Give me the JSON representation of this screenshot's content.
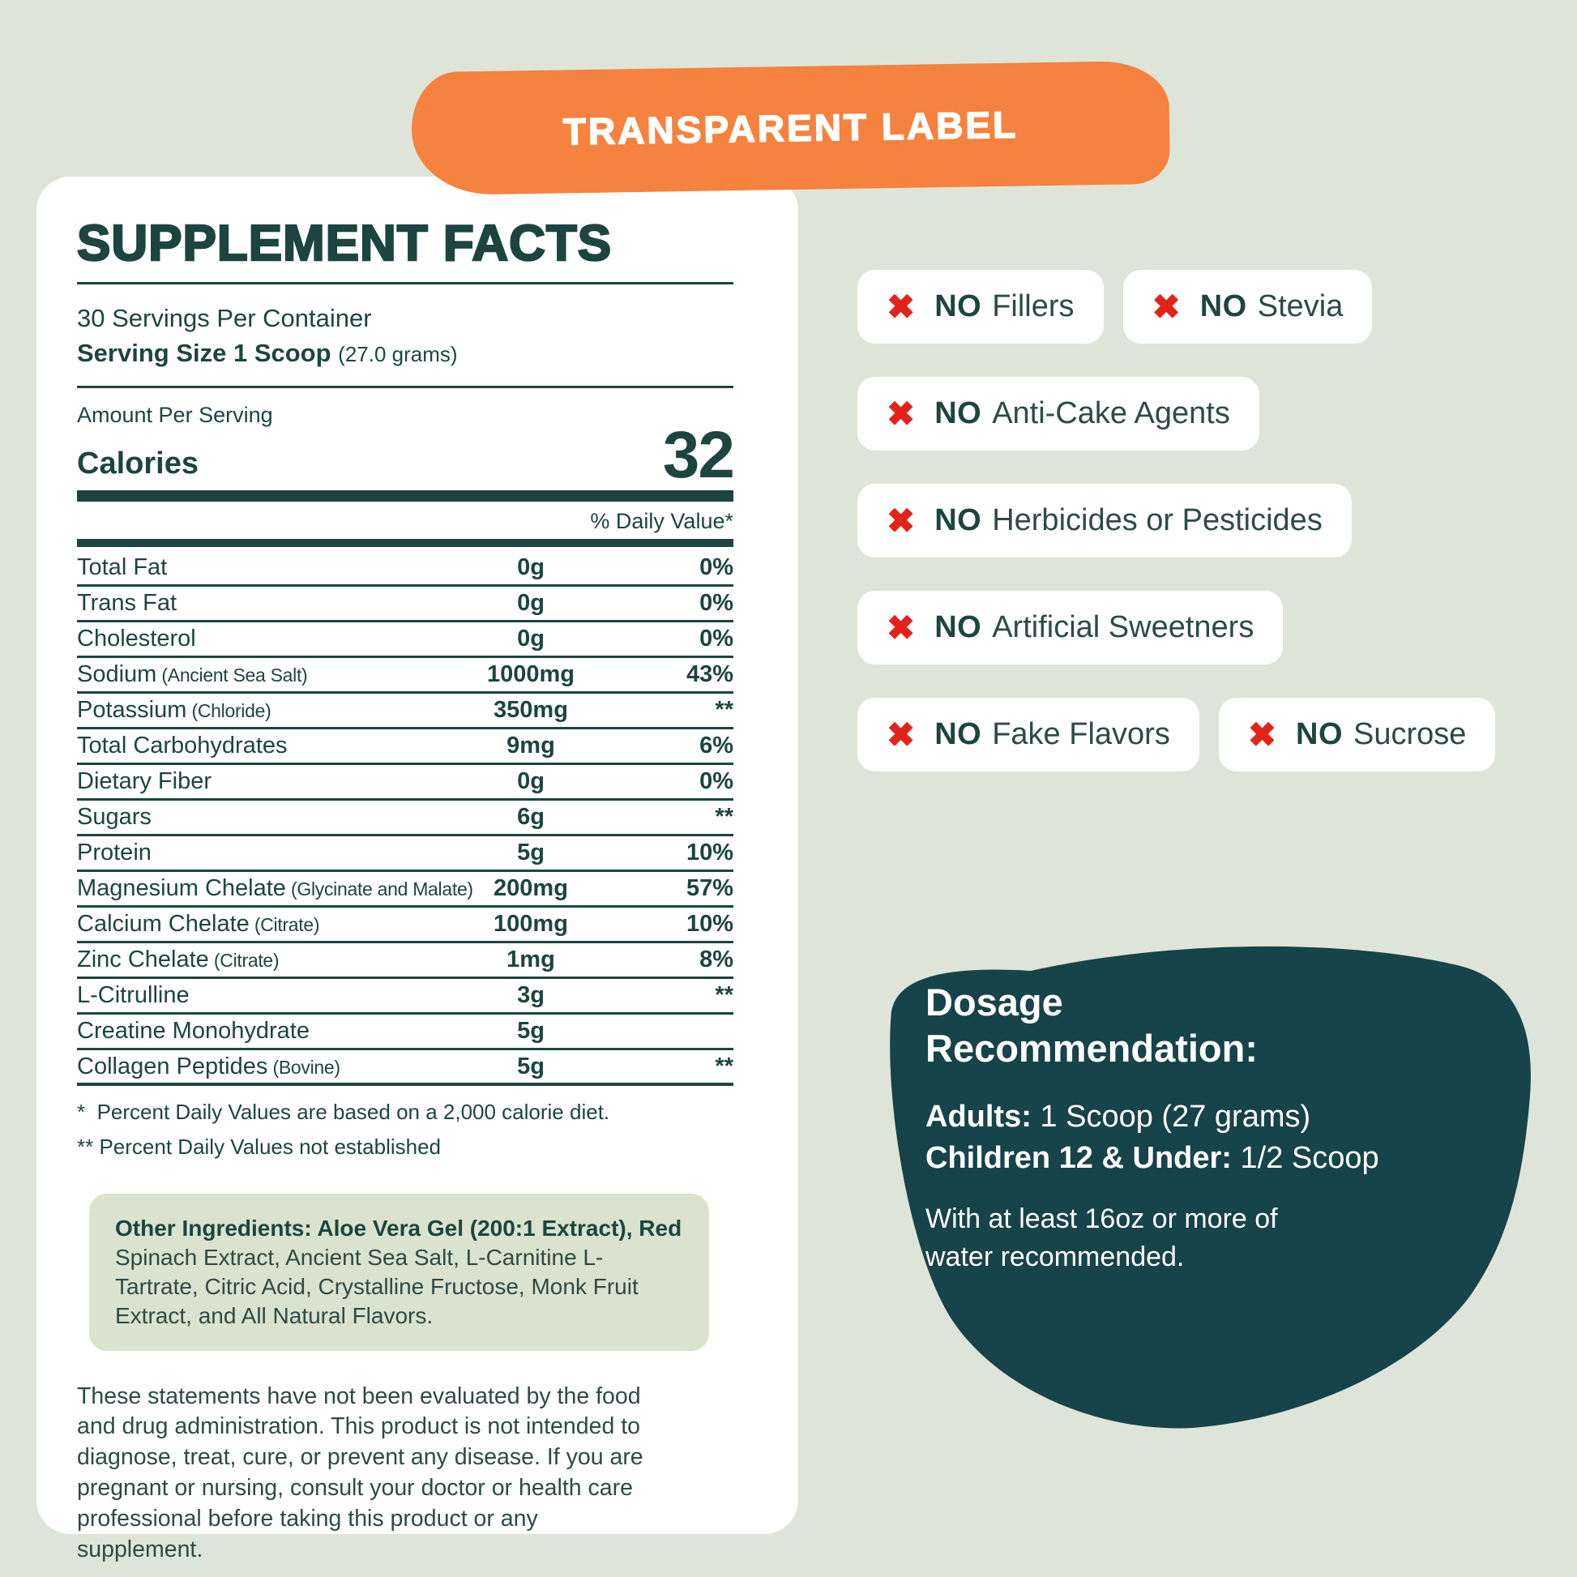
{
  "colors": {
    "bg": "#dee5d8",
    "orange": "#f5823e",
    "teal": "#1d4540",
    "blob": "#17434a",
    "red": "#e2231a",
    "box_bg": "#d9e3ce",
    "card": "#ffffff"
  },
  "icons": {
    "x": "✖"
  },
  "banner": {
    "label": "TRANSPARENT LABEL"
  },
  "supplement_facts": {
    "title": "SUPPLEMENT FACTS",
    "servings_per_container": "30 Servings Per Container",
    "serving_size_label": "Serving Size 1 Scoop ",
    "serving_size_detail": "(27.0 grams)",
    "amount_per_serving_label": "Amount Per Serving",
    "calories_label": "Calories",
    "calories_value": "32",
    "daily_value_header": "% Daily Value*",
    "rows": [
      {
        "name": "Total Fat",
        "sub": "",
        "amount": "0g",
        "dv": "0%"
      },
      {
        "name": "Trans Fat",
        "sub": "",
        "amount": "0g",
        "dv": "0%"
      },
      {
        "name": "Cholesterol",
        "sub": "",
        "amount": "0g",
        "dv": "0%"
      },
      {
        "name": "Sodium",
        "sub": "(Ancient Sea Salt)",
        "amount": "1000mg",
        "dv": "43%"
      },
      {
        "name": "Potassium",
        "sub": "(Chloride)",
        "amount": "350mg",
        "dv": "**"
      },
      {
        "name": "Total Carbohydrates",
        "sub": "",
        "amount": "9mg",
        "dv": "6%"
      },
      {
        "name": "Dietary Fiber",
        "sub": "",
        "amount": "0g",
        "dv": "0%"
      },
      {
        "name": "Sugars",
        "sub": "",
        "amount": "6g",
        "dv": "**"
      },
      {
        "name": "Protein",
        "sub": "",
        "amount": "5g",
        "dv": "10%"
      },
      {
        "name": "Magnesium Chelate",
        "sub": "(Glycinate and Malate)",
        "amount": "200mg",
        "dv": "57%"
      },
      {
        "name": "Calcium Chelate",
        "sub": "(Citrate)",
        "amount": "100mg",
        "dv": "10%"
      },
      {
        "name": "Zinc Chelate",
        "sub": "(Citrate)",
        "amount": "1mg",
        "dv": "8%"
      },
      {
        "name": "L-Citrulline",
        "sub": "",
        "amount": "3g",
        "dv": "**"
      },
      {
        "name": "Creatine Monohydrate",
        "sub": "",
        "amount": "5g",
        "dv": ""
      },
      {
        "name": "Collagen Peptides",
        "sub": "(Bovine)",
        "amount": "5g",
        "dv": "**"
      }
    ],
    "footnote1": "*  Percent Daily Values are based on a 2,000 calorie diet.",
    "footnote2": "** Percent Daily Values not established",
    "other_ingredients_bold": "Other Ingredients: Aloe Vera Gel (200:1 Extract), Red",
    "other_ingredients_rest": " Spinach Extract, Ancient Sea Salt, L-Carnitine L-Tartrate, Citric Acid, Crystalline Fructose, Monk Fruit Extract, and All Natural Flavors.",
    "disclaimer": "These statements have not been evaluated by the food and drug administration. This product is not intended to diagnose, treat, cure, or prevent any disease. If you are pregnant or nursing, consult your doctor or health care professional before taking this product or any supplement."
  },
  "badges": [
    {
      "no": "NO",
      "label": "Fillers"
    },
    {
      "no": "NO",
      "label": "Stevia"
    },
    {
      "no": "NO",
      "label": "Anti-Cake Agents"
    },
    {
      "no": "NO",
      "label": "Herbicides or Pesticides"
    },
    {
      "no": "NO",
      "label": "Artificial Sweetners"
    },
    {
      "no": "NO",
      "label": "Fake Flavors"
    },
    {
      "no": "NO",
      "label": "Sucrose"
    }
  ],
  "dosage": {
    "title": "Dosage Recommendation:",
    "adults_label": "Adults:",
    "adults_value": " 1 Scoop (27 grams)",
    "children_label": "Children 12 & Under:",
    "children_value": " 1/2 Scoop",
    "note": "With at least 16oz or more of water recommended."
  }
}
